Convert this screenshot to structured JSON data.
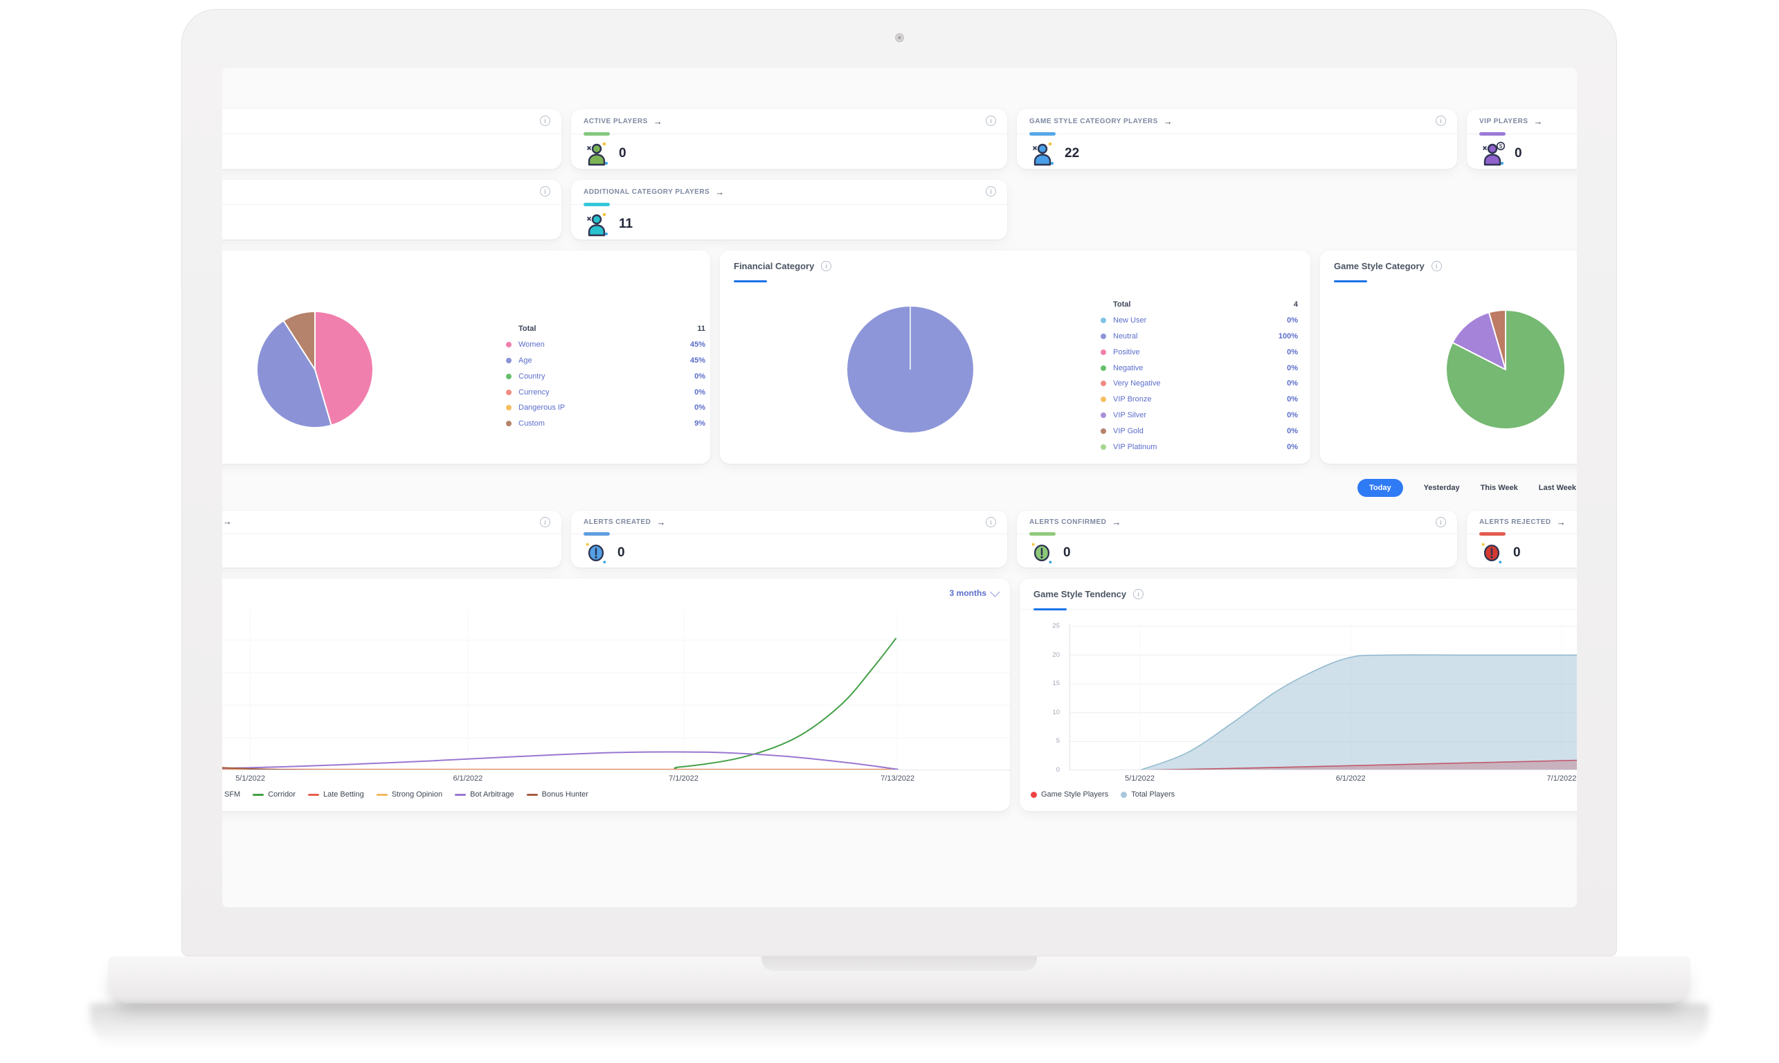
{
  "stat_cards": {
    "active": {
      "title": "ACTIVE PLAYERS",
      "value": "0",
      "accent": "#84c77d",
      "icon_color": "#7cb454"
    },
    "game_style": {
      "title": "GAME STYLE CATEGORY PLAYERS",
      "value": "22",
      "accent": "#56a8e8",
      "icon_color": "#4a9fe8"
    },
    "vip": {
      "title": "VIP PLAYERS",
      "value": "0",
      "accent": "#9a7bd8",
      "icon_color": "#8f62cc",
      "badge": "$"
    },
    "additional": {
      "title": "ADDITIONAL CATEGORY PLAYERS",
      "value": "11",
      "accent": "#36c6d9",
      "icon_color": "#29c1cd"
    },
    "alerts_created": {
      "title": "ALERTS CREATED",
      "value": "0",
      "accent": "#5f9fe0",
      "icon_color": "#55a0e6"
    },
    "alerts_confirmed": {
      "title": "ALERTS CONFIRMED",
      "value": "0",
      "accent": "#8fc97c",
      "icon_color": "#8cc878"
    },
    "alerts_rejected": {
      "title": "ALERTS REJECTED",
      "value": "0",
      "accent": "#e25c50",
      "icon_color": "#d63a31"
    }
  },
  "filters": {
    "active": "Today",
    "options": [
      "Today",
      "Yesterday",
      "This Week",
      "Last Week"
    ],
    "active_bg": "#2f7af5"
  },
  "chart_data": [
    {
      "id": "player-categories-pie",
      "type": "pie",
      "total_label": "Total",
      "total": "11",
      "slices": [
        {
          "label": "Women",
          "pct": "45%",
          "value": 45,
          "color": "#f17fad"
        },
        {
          "label": "Age",
          "pct": "45%",
          "value": 45,
          "color": "#8b93d6"
        },
        {
          "label": "Country",
          "pct": "0%",
          "value": 0,
          "color": "#66bf6a"
        },
        {
          "label": "Currency",
          "pct": "0%",
          "value": 0,
          "color": "#f28b80"
        },
        {
          "label": "Dangerous IP",
          "pct": "0%",
          "value": 0,
          "color": "#f6bd60"
        },
        {
          "label": "Custom",
          "pct": "9%",
          "value": 9,
          "color": "#b5826b"
        }
      ]
    },
    {
      "id": "financial-category-pie",
      "type": "pie",
      "title": "Financial Category",
      "total_label": "Total",
      "total": "4",
      "slices": [
        {
          "label": "New User",
          "pct": "0%",
          "value": 0,
          "color": "#7fc3e8"
        },
        {
          "label": "Neutral",
          "pct": "100%",
          "value": 100,
          "color": "#8d96d8"
        },
        {
          "label": "Positive",
          "pct": "0%",
          "value": 0,
          "color": "#f17fad"
        },
        {
          "label": "Negative",
          "pct": "0%",
          "value": 0,
          "color": "#66bf6a"
        },
        {
          "label": "Very Negative",
          "pct": "0%",
          "value": 0,
          "color": "#f28b80"
        },
        {
          "label": "VIP Bronze",
          "pct": "0%",
          "value": 0,
          "color": "#f6bd60"
        },
        {
          "label": "VIP Silver",
          "pct": "0%",
          "value": 0,
          "color": "#a98fd8"
        },
        {
          "label": "VIP Gold",
          "pct": "0%",
          "value": 0,
          "color": "#b5826b"
        },
        {
          "label": "VIP Platinum",
          "pct": "0%",
          "value": 0,
          "color": "#a8d68f"
        }
      ]
    },
    {
      "id": "game-style-category-pie",
      "type": "pie",
      "title": "Game Style Category",
      "slices": [
        {
          "label": "",
          "pct": "",
          "value": 82.5,
          "color": "#76b972"
        },
        {
          "label": "",
          "pct": "",
          "value": 13,
          "color": "#a583d9"
        },
        {
          "label": "",
          "pct": "",
          "value": 4.5,
          "color": "#bd7a64"
        }
      ]
    },
    {
      "id": "alerts-trend-line",
      "type": "line",
      "range_label": "3 months",
      "ylim": [
        0,
        100
      ],
      "x_ticks": [
        {
          "label": "5/1/2022",
          "pos": 0.148
        },
        {
          "label": "6/1/2022",
          "pos": 0.392
        },
        {
          "label": "7/1/2022",
          "pos": 0.634
        },
        {
          "label": "7/13/2022",
          "pos": 0.874
        }
      ],
      "series": [
        {
          "name": "SFM",
          "color": "#5b8ff9",
          "points": [
            [
              0.0,
              0
            ],
            [
              0.874,
              0
            ]
          ]
        },
        {
          "name": "Corridor",
          "color": "#43a047",
          "points": [
            [
              0.0,
              0
            ],
            [
              0.56,
              0
            ],
            [
              0.63,
              2
            ],
            [
              0.7,
              8
            ],
            [
              0.76,
              20
            ],
            [
              0.81,
              40
            ],
            [
              0.845,
              62
            ],
            [
              0.872,
              81
            ]
          ]
        },
        {
          "name": "Late Betting",
          "color": "#e8604c",
          "points": [
            [
              0.0,
              0.5
            ],
            [
              0.874,
              0.5
            ]
          ]
        },
        {
          "name": "Strong Opinion",
          "color": "#f3b75f",
          "points": [
            [
              0.0,
              0.2
            ],
            [
              0.874,
              0.2
            ]
          ]
        },
        {
          "name": "Bot Arbitrage",
          "color": "#9a77d1",
          "points": [
            [
              0.02,
              0.8
            ],
            [
              0.15,
              1.6
            ],
            [
              0.3,
              4.5
            ],
            [
              0.45,
              8.5
            ],
            [
              0.55,
              10.8
            ],
            [
              0.62,
              11.3
            ],
            [
              0.68,
              10.8
            ],
            [
              0.75,
              8.5
            ],
            [
              0.82,
              4.5
            ],
            [
              0.874,
              0.6
            ]
          ]
        },
        {
          "name": "Bonus Hunter",
          "color": "#a55d41",
          "points": [
            [
              0.0,
              5.5
            ],
            [
              0.06,
              3.5
            ],
            [
              0.12,
              1.5
            ],
            [
              0.18,
              0.4
            ],
            [
              0.25,
              0
            ],
            [
              0.5,
              0
            ],
            [
              0.874,
              0
            ]
          ]
        }
      ]
    },
    {
      "id": "game-style-tendency-area",
      "type": "area",
      "title": "Game Style Tendency",
      "ylim": [
        0,
        25
      ],
      "y_ticks": [
        0,
        5,
        10,
        15,
        20,
        25
      ],
      "x_ticks": [
        {
          "label": "5/1/2022",
          "pos": 0.096
        },
        {
          "label": "6/1/2022",
          "pos": 0.384
        },
        {
          "label": "7/1/2022",
          "pos": 0.672
        }
      ],
      "series": [
        {
          "name": "Total Players",
          "color": "#93b9ce",
          "fill": "rgba(168,198,216,0.55)",
          "points": [
            [
              0.096,
              0
            ],
            [
              0.16,
              3
            ],
            [
              0.22,
              8
            ],
            [
              0.28,
              13.5
            ],
            [
              0.33,
              17
            ],
            [
              0.38,
              19.5
            ],
            [
              0.43,
              20
            ],
            [
              0.6,
              20
            ],
            [
              1,
              20
            ]
          ]
        },
        {
          "name": "Game Style Players",
          "color": "#bf5a6d",
          "fill": "rgba(191,110,125,0.4)",
          "points": [
            [
              0.096,
              0
            ],
            [
              0.25,
              0.4
            ],
            [
              0.45,
              1
            ],
            [
              0.65,
              1.6
            ],
            [
              0.8,
              2.1
            ],
            [
              0.92,
              2.6
            ],
            [
              1,
              3.4
            ]
          ]
        }
      ],
      "legend": [
        {
          "label": "Game Style Players",
          "color": "#ef4444"
        },
        {
          "label": "Total Players",
          "color": "#a9c7dc"
        }
      ]
    }
  ]
}
